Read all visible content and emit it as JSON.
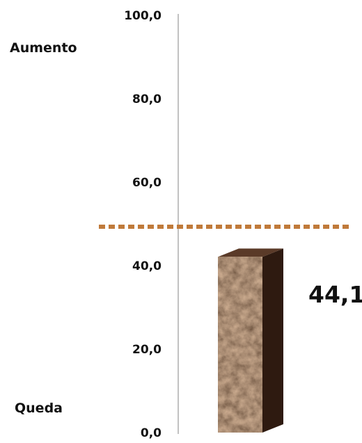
{
  "chart_data": {
    "type": "bar",
    "categories": [
      ""
    ],
    "values": [
      44.1
    ],
    "value_label": "44,1",
    "ylim": [
      0,
      100
    ],
    "y_ticks": [
      "0,0",
      "20,0",
      "40,0",
      "60,0",
      "80,0",
      "100,0"
    ],
    "reference_line": 50,
    "upper_label": "Aumento",
    "lower_label": "Queda",
    "colors": {
      "bar_texture": "marble-brown",
      "bar_front": "#4a2c1c",
      "bar_side": "#2e1a10",
      "bar_top": "#5a3a28",
      "reference_line": "#c07a3a",
      "axis": "#9a9a9a"
    },
    "grid": false,
    "legend": "none"
  }
}
